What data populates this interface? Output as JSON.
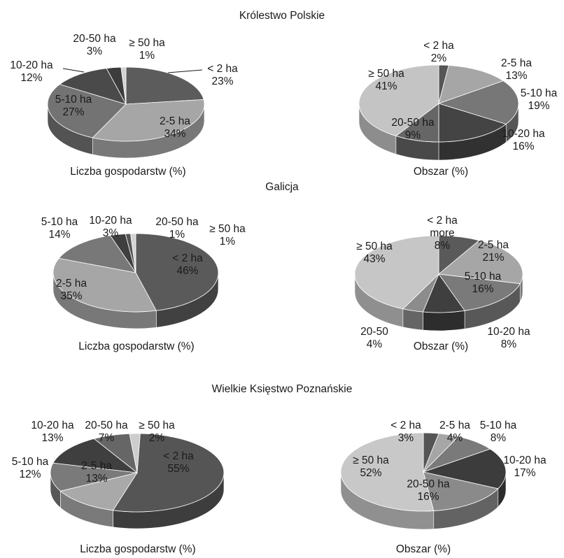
{
  "sections": [
    {
      "title": "Królestwo Polskie"
    },
    {
      "title": "Galicja"
    },
    {
      "title": "Wielkie Księstwo Poznańskie"
    }
  ],
  "chart_data": [
    {
      "type": "pie",
      "section": "Królestwo Polskie",
      "title": "Liczba gospodarstw (%)",
      "categories": [
        "< 2 ha",
        "2-5 ha",
        "5-10 ha",
        "10-20 ha",
        "20-50 ha",
        "≥ 50 ha"
      ],
      "values": [
        23,
        34,
        27,
        12,
        3,
        1
      ],
      "value_labels": [
        "23%",
        "34%",
        "27%",
        "12%",
        "3%",
        "1%"
      ],
      "slice_labels": [
        "< 2 ha",
        "2-5 ha",
        "5-10 ha",
        "10-20 ha",
        "20-50 ha",
        "≥ 50 ha"
      ],
      "colors": [
        "#5c5c5c",
        "#a6a6a6",
        "#737373",
        "#4a4a4a",
        "#3c3c3c",
        "#d2d2d2"
      ]
    },
    {
      "type": "pie",
      "section": "Królestwo Polskie",
      "title": "Obszar (%)",
      "categories": [
        "< 2 ha",
        "2-5 ha",
        "5-10 ha",
        "10-20 ha",
        "20-50 ha",
        "≥ 50 ha"
      ],
      "values": [
        2,
        13,
        19,
        16,
        9,
        41
      ],
      "value_labels": [
        "2%",
        "13%",
        "19%",
        "16%",
        "9%",
        "41%"
      ],
      "slice_labels": [
        "< 2 ha",
        "2-5 ha",
        "5-10 ha",
        "10-20 ha",
        "20-50 ha",
        "≥ 50 ha"
      ],
      "colors": [
        "#555555",
        "#a6a6a6",
        "#777777",
        "#444444",
        "#666666",
        "#c4c4c4"
      ]
    },
    {
      "type": "pie",
      "section": "Galicja",
      "title": "Liczba gospodarstw (%)",
      "categories": [
        "< 2 ha",
        "2-5 ha",
        "5-10 ha",
        "10-20 ha",
        "20-50 ha",
        "≥ 50 ha"
      ],
      "values": [
        46,
        35,
        14,
        3,
        1,
        1
      ],
      "value_labels": [
        "46%",
        "35%",
        "14%",
        "3%",
        "1%",
        "1%"
      ],
      "slice_labels": [
        "< 2 ha",
        "2-5 ha",
        "5-10 ha",
        "10-20 ha",
        "20-50 ha",
        "≥ 50 ha"
      ],
      "colors": [
        "#5a5a5a",
        "#a6a6a6",
        "#787878",
        "#3f3f3f",
        "#555555",
        "#d4d4d4"
      ]
    },
    {
      "type": "pie",
      "section": "Galicja",
      "title": "Obszar (%)",
      "categories": [
        "< 2 ha",
        "2-5 ha",
        "5-10 ha",
        "10-20 ha",
        "20-50 ha",
        "≥ 50 ha"
      ],
      "values": [
        8,
        21,
        16,
        8,
        4,
        43
      ],
      "value_labels": [
        "8%",
        "21%",
        "16%",
        "8%",
        "4%",
        "43%"
      ],
      "slice_labels": [
        "< 2 ha",
        "2-5 ha",
        "5-10 ha",
        "10-20 ha",
        "20-50",
        "≥ 50 ha"
      ],
      "extra_labels": [
        "more",
        "",
        "",
        "",
        "",
        ""
      ],
      "colors": [
        "#5a5a5a",
        "#a6a6a6",
        "#7a7a7a",
        "#3f3f3f",
        "#8c8c8c",
        "#c6c6c6"
      ]
    },
    {
      "type": "pie",
      "section": "Wielkie Księstwo Poznańskie",
      "title": "Liczba gospodarstw (%)",
      "categories": [
        "< 2 ha",
        "2-5 ha",
        "5-10 ha",
        "10-20 ha",
        "20-50 ha",
        "≥ 50 ha"
      ],
      "values": [
        55,
        13,
        12,
        13,
        7,
        2
      ],
      "value_labels": [
        "55%",
        "13%",
        "12%",
        "13%",
        "7%",
        "2%"
      ],
      "slice_labels": [
        "< 2 ha",
        "2-5 ha",
        "5-10 ha",
        "10-20 ha",
        "20-50 ha",
        "≥ 50 ha"
      ],
      "colors": [
        "#555555",
        "#a9a9a9",
        "#7a7a7a",
        "#3f3f3f",
        "#666666",
        "#cdcdcd"
      ]
    },
    {
      "type": "pie",
      "section": "Wielkie Księstwo Poznańskie",
      "title": "Obszar (%)",
      "categories": [
        "< 2 ha",
        "2-5 ha",
        "5-10 ha",
        "10-20 ha",
        "20-50 ha",
        "≥ 50 ha"
      ],
      "values": [
        3,
        4,
        8,
        17,
        16,
        52
      ],
      "value_labels": [
        "3%",
        "4%",
        "8%",
        "17%",
        "16%",
        "52%"
      ],
      "slice_labels": [
        "< 2 ha",
        "2-5 ha",
        "5-10 ha",
        "10-20 ha",
        "20-50 ha",
        "≥ 50 ha"
      ],
      "colors": [
        "#555555",
        "#a6a6a6",
        "#7a7a7a",
        "#3c3c3c",
        "#8a8a8a",
        "#c8c8c8"
      ]
    }
  ]
}
